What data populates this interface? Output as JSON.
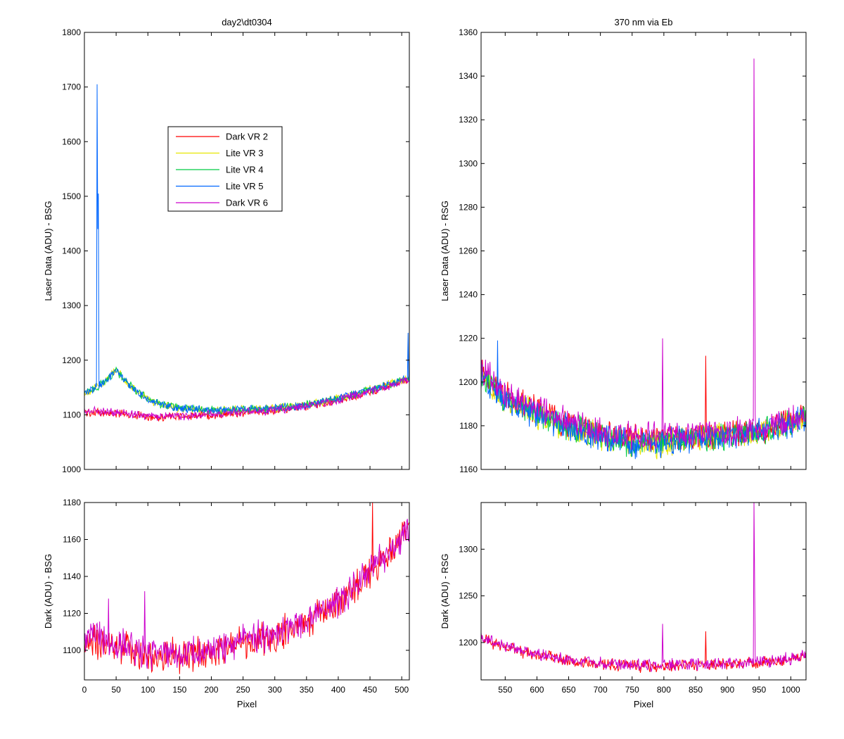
{
  "figure": {
    "background": "#ffffff"
  },
  "chart_data": [
    {
      "id": "top-left",
      "type": "line",
      "title": "day2\\dt0304",
      "xlabel": "",
      "ylabel": "Laser Data (ADU) - BSG",
      "xlim": [
        0,
        512
      ],
      "ylim": [
        1000,
        1800
      ],
      "xticks": [
        0,
        50,
        100,
        150,
        200,
        250,
        300,
        350,
        400,
        450,
        500
      ],
      "yticks": [
        1000,
        1100,
        1200,
        1300,
        1400,
        1500,
        1600,
        1700,
        1800
      ],
      "show_xtick_labels": false,
      "grid": false,
      "legend": "upper-middle",
      "series": [
        {
          "name": "Dark VR 2",
          "color": "#ff0000",
          "x": [
            0,
            20,
            40,
            60,
            80,
            100,
            120,
            150,
            200,
            250,
            300,
            350,
            400,
            450,
            480,
            500,
            512
          ],
          "y": [
            1105,
            1104,
            1103,
            1102,
            1099,
            1097,
            1096,
            1097,
            1099,
            1104,
            1108,
            1115,
            1126,
            1142,
            1152,
            1160,
            1165
          ],
          "spikes": []
        },
        {
          "name": "Lite VR 3",
          "color": "#e6e600",
          "x": [
            0,
            15,
            30,
            50,
            60,
            80,
            100,
            120,
            150,
            200,
            250,
            300,
            350,
            400,
            450,
            500,
            512
          ],
          "y": [
            1140,
            1148,
            1158,
            1182,
            1168,
            1145,
            1128,
            1120,
            1112,
            1108,
            1110,
            1112,
            1118,
            1130,
            1146,
            1163,
            1168
          ],
          "spikes": []
        },
        {
          "name": "Lite VR 4",
          "color": "#00cc44",
          "x": [
            0,
            15,
            30,
            50,
            60,
            80,
            100,
            120,
            150,
            200,
            250,
            300,
            350,
            400,
            450,
            500,
            512
          ],
          "y": [
            1140,
            1148,
            1158,
            1182,
            1168,
            1145,
            1128,
            1120,
            1112,
            1108,
            1110,
            1112,
            1118,
            1130,
            1146,
            1163,
            1168
          ],
          "spikes": []
        },
        {
          "name": "Lite VR 5",
          "color": "#0066ff",
          "x": [
            0,
            15,
            30,
            50,
            60,
            80,
            100,
            120,
            150,
            200,
            250,
            300,
            350,
            400,
            450,
            500,
            512
          ],
          "y": [
            1140,
            1148,
            1158,
            1182,
            1168,
            1145,
            1128,
            1120,
            1112,
            1108,
            1110,
            1112,
            1118,
            1130,
            1146,
            1163,
            1168
          ],
          "spikes": [
            [
              20,
              1705
            ],
            [
              21,
              1440
            ],
            [
              22,
              1505
            ],
            [
              510,
              1250
            ]
          ]
        },
        {
          "name": "Dark VR 6",
          "color": "#cc00cc",
          "x": [
            0,
            20,
            40,
            60,
            80,
            100,
            120,
            150,
            200,
            250,
            300,
            350,
            400,
            450,
            480,
            500,
            512
          ],
          "y": [
            1108,
            1107,
            1105,
            1103,
            1100,
            1098,
            1097,
            1098,
            1100,
            1105,
            1109,
            1116,
            1127,
            1143,
            1153,
            1161,
            1166
          ],
          "spikes": []
        }
      ]
    },
    {
      "id": "top-right",
      "type": "line",
      "title": "370 nm via Eb",
      "xlabel": "",
      "ylabel": "Laser Data (ADU) - RSG",
      "xlim": [
        512,
        1024
      ],
      "ylim": [
        1160,
        1360
      ],
      "xticks": [
        550,
        600,
        650,
        700,
        750,
        800,
        850,
        900,
        950,
        1000
      ],
      "yticks": [
        1160,
        1180,
        1200,
        1220,
        1240,
        1260,
        1280,
        1300,
        1320,
        1340,
        1360
      ],
      "show_xtick_labels": false,
      "grid": false,
      "series": [
        {
          "name": "Dark VR 2",
          "color": "#ff0000",
          "x": [
            512,
            530,
            550,
            600,
            650,
            700,
            750,
            800,
            850,
            900,
            950,
            1000,
            1024
          ],
          "y": [
            1205,
            1200,
            1194,
            1187,
            1181,
            1176,
            1174,
            1174,
            1175,
            1176,
            1177,
            1181,
            1186
          ],
          "spikes": [
            [
              866,
              1212
            ]
          ]
        },
        {
          "name": "Lite VR 3",
          "color": "#e6e600",
          "x": [
            512,
            530,
            550,
            600,
            650,
            700,
            750,
            800,
            850,
            900,
            950,
            1000,
            1024
          ],
          "y": [
            1203,
            1198,
            1192,
            1185,
            1179,
            1175,
            1172,
            1172,
            1174,
            1176,
            1177,
            1181,
            1185
          ],
          "spikes": []
        },
        {
          "name": "Lite VR 4",
          "color": "#00cc44",
          "x": [
            512,
            530,
            550,
            600,
            650,
            700,
            750,
            800,
            850,
            900,
            950,
            1000,
            1024
          ],
          "y": [
            1203,
            1198,
            1192,
            1185,
            1179,
            1175,
            1172,
            1172,
            1174,
            1176,
            1177,
            1181,
            1185
          ],
          "spikes": []
        },
        {
          "name": "Lite VR 5",
          "color": "#0066ff",
          "x": [
            512,
            530,
            550,
            600,
            650,
            700,
            750,
            800,
            850,
            900,
            950,
            1000,
            1024
          ],
          "y": [
            1203,
            1198,
            1192,
            1185,
            1179,
            1175,
            1172,
            1172,
            1174,
            1176,
            1177,
            1181,
            1185
          ],
          "spikes": [
            [
              538,
              1219
            ]
          ]
        },
        {
          "name": "Dark VR 6",
          "color": "#cc00cc",
          "x": [
            512,
            530,
            550,
            600,
            650,
            700,
            750,
            800,
            850,
            900,
            950,
            1000,
            1024
          ],
          "y": [
            1206,
            1201,
            1195,
            1188,
            1182,
            1177,
            1175,
            1175,
            1176,
            1177,
            1178,
            1182,
            1187
          ],
          "spikes": [
            [
              798,
              1220
            ],
            [
              942,
              1348
            ],
            [
              943,
              1270
            ]
          ]
        }
      ]
    },
    {
      "id": "bottom-left",
      "type": "line",
      "title": "",
      "xlabel": "Pixel",
      "ylabel": "Dark (ADU) - BSG",
      "xlim": [
        0,
        512
      ],
      "ylim": [
        1084,
        1180
      ],
      "xticks": [
        0,
        50,
        100,
        150,
        200,
        250,
        300,
        350,
        400,
        450,
        500
      ],
      "yticks": [
        1100,
        1120,
        1140,
        1160,
        1180
      ],
      "show_xtick_labels": true,
      "grid": false,
      "series": [
        {
          "name": "Dark VR 2",
          "color": "#ff0000",
          "x": [
            0,
            50,
            100,
            150,
            200,
            250,
            300,
            350,
            400,
            450,
            500,
            512
          ],
          "y": [
            1105,
            1102,
            1097,
            1097,
            1099,
            1104,
            1108,
            1115,
            1126,
            1142,
            1160,
            1165
          ],
          "spikes": [
            [
              454,
              1180
            ]
          ]
        },
        {
          "name": "Dark VR 6",
          "color": "#cc00cc",
          "x": [
            0,
            50,
            100,
            150,
            200,
            250,
            300,
            350,
            400,
            450,
            500,
            512
          ],
          "y": [
            1108,
            1104,
            1098,
            1098,
            1100,
            1105,
            1109,
            1116,
            1127,
            1143,
            1161,
            1166
          ],
          "spikes": [
            [
              38,
              1128
            ],
            [
              95,
              1132
            ]
          ]
        }
      ]
    },
    {
      "id": "bottom-right",
      "type": "line",
      "title": "",
      "xlabel": "Pixel",
      "ylabel": "Dark (ADU) - RSG",
      "xlim": [
        512,
        1024
      ],
      "ylim": [
        1160,
        1350
      ],
      "xticks": [
        550,
        600,
        650,
        700,
        750,
        800,
        850,
        900,
        950,
        1000
      ],
      "yticks": [
        1200,
        1250,
        1300
      ],
      "show_xtick_labels": true,
      "grid": false,
      "series": [
        {
          "name": "Dark VR 2",
          "color": "#ff0000",
          "x": [
            512,
            530,
            550,
            600,
            650,
            700,
            750,
            800,
            850,
            900,
            950,
            1000,
            1024
          ],
          "y": [
            1205,
            1200,
            1194,
            1187,
            1181,
            1177,
            1175,
            1175,
            1176,
            1177,
            1178,
            1182,
            1187
          ],
          "spikes": [
            [
              866,
              1212
            ]
          ]
        },
        {
          "name": "Dark VR 6",
          "color": "#cc00cc",
          "x": [
            512,
            530,
            550,
            600,
            650,
            700,
            750,
            800,
            850,
            900,
            950,
            1000,
            1024
          ],
          "y": [
            1206,
            1201,
            1195,
            1188,
            1182,
            1178,
            1176,
            1176,
            1177,
            1178,
            1179,
            1183,
            1188
          ],
          "spikes": [
            [
              798,
              1220
            ],
            [
              942,
              1350
            ],
            [
              943,
              1270
            ]
          ]
        }
      ]
    }
  ]
}
